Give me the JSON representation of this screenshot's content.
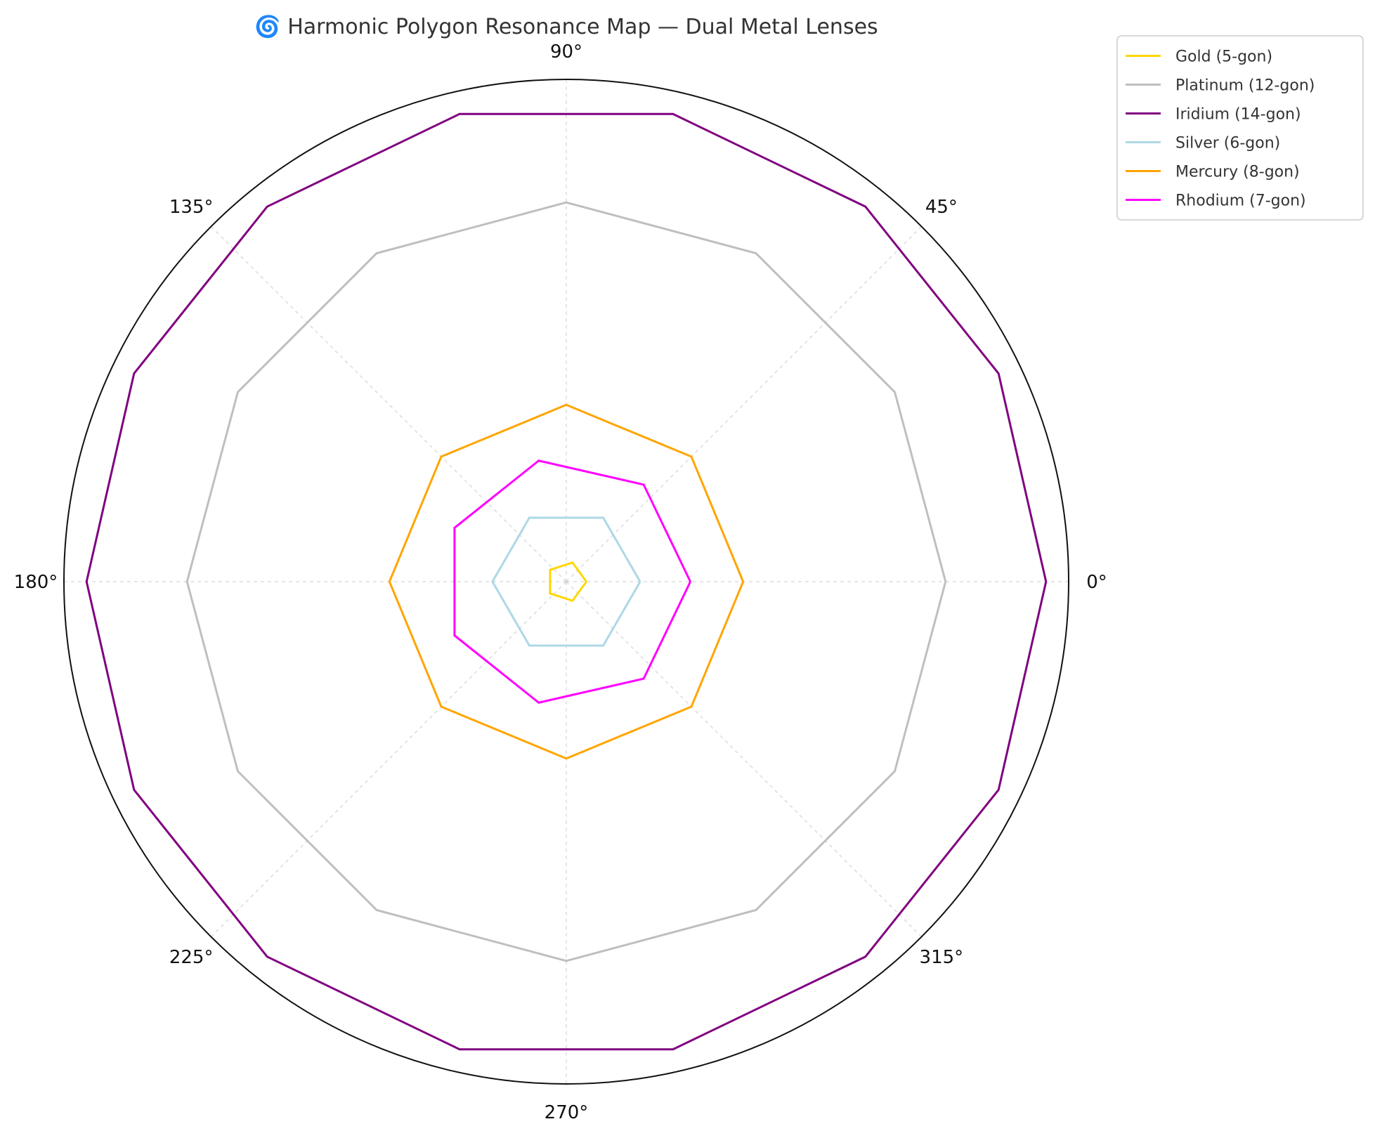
{
  "chart_data": {
    "type": "polar-polygon",
    "title": "🌀 Harmonic Polygon Resonance Map — Dual Metal Lenses",
    "angular_ticks": [
      "0°",
      "45°",
      "90°",
      "135°",
      "180°",
      "225°",
      "270°",
      "315°"
    ],
    "angular_tick_degrees": [
      0,
      45,
      90,
      135,
      180,
      225,
      270,
      315
    ],
    "radial_ticks_shown": false,
    "rmax": 1.0,
    "grid": true,
    "legend_placement": "upper right, outside plot",
    "series": [
      {
        "name": "Gold (5-gon)",
        "sides": 5,
        "radius": 0.04,
        "start_angle_deg": 0,
        "color": "#FFD700"
      },
      {
        "name": "Platinum (12-gon)",
        "sides": 12,
        "radius": 0.755,
        "start_angle_deg": 0,
        "color": "#BFBFBF"
      },
      {
        "name": "Iridium (14-gon)",
        "sides": 14,
        "radius": 0.955,
        "start_angle_deg": 0,
        "color": "#800080"
      },
      {
        "name": "Silver (6-gon)",
        "sides": 6,
        "radius": 0.147,
        "start_angle_deg": 0,
        "color": "#ADD8E6"
      },
      {
        "name": "Mercury (8-gon)",
        "sides": 8,
        "radius": 0.352,
        "start_angle_deg": 0,
        "color": "#FFA500"
      },
      {
        "name": "Rhodium (7-gon)",
        "sides": 7,
        "radius": 0.247,
        "start_angle_deg": 0,
        "color": "#FF00FF"
      }
    ]
  }
}
